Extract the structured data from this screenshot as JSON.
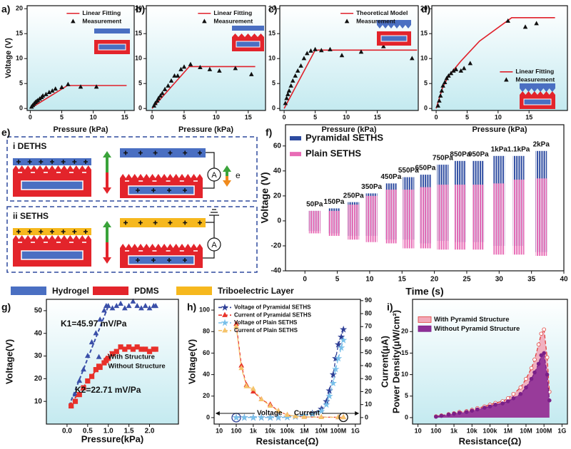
{
  "chart_data": [
    {
      "type": "line",
      "panel_label": "a)",
      "x_label": "Pressure (kPa)",
      "y_label": "Voltage (V)",
      "xlim": [
        -0.5,
        16.5
      ],
      "ylim": [
        -0.4,
        20.6
      ],
      "xticks": [
        0,
        5,
        10,
        15
      ],
      "yticks": [
        0,
        5,
        10,
        15,
        20
      ],
      "background": "gradient",
      "legend": "upper right",
      "series": [
        {
          "name": "Linear Fitting",
          "color": "#e0202a",
          "mode": "line",
          "x": [
            0,
            5.9,
            15.3
          ],
          "values": [
            0,
            4.6,
            4.6
          ]
        },
        {
          "name": "Measurement",
          "color": "#111111",
          "mode": "markers",
          "marker": "triangle",
          "x": [
            0.2,
            0.4,
            0.6,
            0.8,
            1,
            1.2,
            1.5,
            1.8,
            2,
            2.5,
            3,
            3.5,
            4,
            5,
            6,
            8,
            10.5
          ],
          "values": [
            0.3,
            0.6,
            0.9,
            1.2,
            1.4,
            1.6,
            1.9,
            2.2,
            2.5,
            2.8,
            3.2,
            3.5,
            3.9,
            4.2,
            4.8,
            4.3,
            4.3
          ]
        }
      ]
    },
    {
      "type": "line",
      "panel_label": "b)",
      "x_label": "Pressure (kPa)",
      "xlim": [
        -0.9,
        17.7
      ],
      "ylim": [
        -0.4,
        20.6
      ],
      "xticks": [
        0,
        5,
        10,
        15
      ],
      "yticks": [
        0,
        5,
        10,
        15,
        20
      ],
      "background": "gradient",
      "legend": "upper right",
      "series": [
        {
          "name": "Linear Fitting",
          "color": "#e0202a",
          "mode": "line",
          "x": [
            0,
            5.8,
            16.1
          ],
          "values": [
            0,
            8.4,
            8.4
          ]
        },
        {
          "name": "Measurement",
          "color": "#111111",
          "mode": "markers",
          "marker": "triangle",
          "x": [
            0.3,
            0.5,
            0.8,
            1,
            1.3,
            1.6,
            2,
            2.5,
            3,
            3.5,
            4,
            4.5,
            5,
            6,
            7.5,
            9,
            10.5,
            13,
            15.5
          ],
          "values": [
            0.5,
            1,
            1.5,
            2,
            2.5,
            3,
            3.8,
            4.5,
            5.5,
            6.5,
            6.5,
            7.8,
            8.3,
            8.8,
            8.2,
            7.8,
            7.5,
            8,
            6.8
          ]
        }
      ]
    },
    {
      "type": "line",
      "panel_label": "c)",
      "x_label": "Pressure (kPa)",
      "xlim": [
        -0.7,
        21.6
      ],
      "ylim": [
        -0.4,
        20.6
      ],
      "xticks": [
        0,
        5,
        10,
        15
      ],
      "yticks": [
        0,
        5,
        10,
        15,
        20
      ],
      "background": "gradient",
      "legend": "upper right",
      "series": [
        {
          "name": "Theoretical Model",
          "color": "#e0202a",
          "mode": "line",
          "x": [
            0,
            5,
            21.4
          ],
          "values": [
            0,
            11.7,
            11.7
          ]
        },
        {
          "name": "Measurement",
          "color": "#111111",
          "mode": "markers",
          "marker": "triangle",
          "x": [
            0.2,
            0.4,
            0.6,
            0.8,
            1.1,
            1.4,
            1.8,
            2.2,
            2.7,
            3.2,
            3.7,
            4.3,
            5,
            6,
            7.4,
            9.3,
            12.4,
            16,
            20.6
          ],
          "values": [
            1,
            2,
            2.8,
            3.5,
            4.5,
            5.5,
            6.5,
            7.5,
            8.5,
            10,
            11,
            11.5,
            11.8,
            11.6,
            11.8,
            10.6,
            11.3,
            12.4,
            10
          ]
        }
      ]
    },
    {
      "type": "line",
      "panel_label": "d)",
      "x_label": "Pressure (kPa)",
      "xlim": [
        -0.7,
        21.2
      ],
      "ylim": [
        -0.4,
        20.6
      ],
      "xticks": [
        0,
        5,
        10,
        15
      ],
      "yticks": [
        0,
        5,
        10,
        15,
        20
      ],
      "background": "gradient",
      "legend": "lower right",
      "series": [
        {
          "name": "Linear Fitting",
          "color": "#e0202a",
          "mode": "line",
          "x": [
            0,
            1,
            2,
            4,
            7,
            12.2,
            19.2
          ],
          "values": [
            0,
            4,
            6.5,
            9.5,
            13.5,
            18.2,
            18.2
          ]
        },
        {
          "name": "Measurement",
          "color": "#111111",
          "mode": "markers",
          "marker": "triangle",
          "x": [
            0.3,
            0.5,
            0.7,
            0.9,
            1.1,
            1.4,
            1.7,
            2,
            2.4,
            2.8,
            3.2,
            4,
            4.5,
            5.5,
            11.6,
            14.4,
            16.2
          ],
          "values": [
            0.5,
            1.5,
            2.5,
            3.5,
            4.5,
            5.2,
            6,
            6.5,
            7,
            7.5,
            7.8,
            7.5,
            8,
            9,
            17.5,
            16.3,
            17
          ]
        }
      ]
    },
    {
      "type": "range",
      "panel_label": "f)",
      "x_label": "Time (s)",
      "y_label": "Voltage (V)",
      "xlim": [
        -3,
        40
      ],
      "ylim": [
        -40,
        77
      ],
      "xticks": [
        0,
        5,
        10,
        15,
        20,
        25,
        30,
        35,
        40
      ],
      "yticks": [
        -40,
        -20,
        0,
        20,
        40,
        60
      ],
      "legend": "upper left",
      "categories": [
        "50Pa",
        "150Pa",
        "250Pa",
        "350Pa",
        "450Pa",
        "550Pa",
        "650Pa",
        "750Pa",
        "850Pa",
        "950Pa",
        "1kPa",
        "1.1kPa",
        "2kPa"
      ],
      "x": [
        1.5,
        4.5,
        7.5,
        10.3,
        13.3,
        16,
        18.6,
        21.3,
        24,
        26.8,
        30,
        33,
        36.5
      ],
      "series": [
        {
          "name": "Pyramidal SETHS",
          "color": "#2c4aa0",
          "values": [
            8,
            10,
            15,
            22,
            30,
            35,
            37,
            45,
            48,
            48,
            52,
            52,
            56
          ],
          "lows": [
            -8,
            -10,
            -12,
            -12,
            -15,
            -15,
            -18,
            -16,
            -17,
            -17,
            -20,
            -20,
            -25
          ]
        },
        {
          "name": "Plain SETHS",
          "color": "#e86bb5",
          "values": [
            8,
            8,
            13,
            20,
            25,
            25,
            27,
            29,
            29,
            29,
            30,
            33,
            34
          ],
          "lows": [
            -10,
            -12,
            -15,
            -17,
            -18,
            -22,
            -22,
            -23,
            -23,
            -23,
            -27,
            -27,
            -28
          ]
        }
      ]
    },
    {
      "type": "line",
      "panel_label": "g)",
      "x_label": "Pressure(kPa)",
      "y_label": "Voltage(V)",
      "xlim": [
        -0.5,
        2.7
      ],
      "ylim": [
        0,
        55
      ],
      "xticks": [
        {
          "value": 0,
          "label": "0.0"
        },
        0.5,
        {
          "value": 1,
          "label": "1.0"
        },
        1.5,
        {
          "value": 2,
          "label": "2.0"
        }
      ],
      "yticks": [
        10,
        20,
        30,
        40,
        50
      ],
      "background": "gradient",
      "legend": "center right",
      "annotations": [
        "K1=45.97 mV/Pa",
        "K2=22.71 mV/Pa"
      ],
      "series": [
        {
          "name": "With Structure",
          "color": "#3a4fa8",
          "mode": "markers",
          "marker": "triangle",
          "dash": "dashed",
          "x": [
            0.1,
            0.2,
            0.3,
            0.4,
            0.5,
            0.6,
            0.7,
            0.8,
            0.9,
            0.95,
            1.0,
            1.1,
            1.2,
            1.3,
            1.4,
            1.5,
            1.6,
            1.7,
            1.8,
            1.9,
            2.0,
            2.1,
            2.15
          ],
          "values": [
            8,
            13,
            19,
            24,
            30,
            36,
            40,
            46,
            50,
            52,
            52,
            51,
            52,
            53,
            51,
            52,
            54,
            52,
            51,
            52,
            51,
            52,
            52
          ],
          "fit": {
            "x": [
              0.05,
              1.0
            ],
            "values": [
              8,
              52
            ]
          }
        },
        {
          "name": "Without Structure",
          "color": "#e8302a",
          "mode": "markers",
          "marker": "square",
          "dash": "dashdot",
          "x": [
            0.1,
            0.2,
            0.3,
            0.4,
            0.5,
            0.6,
            0.7,
            0.8,
            0.9,
            0.95,
            1.0,
            1.1,
            1.2,
            1.3,
            1.4,
            1.5,
            1.6,
            1.7,
            1.8,
            1.9,
            2.0,
            2.1,
            2.15
          ],
          "values": [
            8,
            10,
            13,
            16,
            19,
            21,
            24,
            25,
            27,
            28,
            29,
            31,
            32,
            34,
            33,
            34,
            33,
            34,
            33,
            33,
            32,
            33,
            33
          ],
          "fit": {
            "x": [
              0.05,
              1.05
            ],
            "values": [
              8,
              32
            ]
          }
        }
      ]
    },
    {
      "type": "line",
      "panel_label": "h)",
      "x_label": "Resistance(Ω)",
      "y_label": "Voltage(V)",
      "y2_label": "Current(μA)",
      "xscale": "log",
      "xlim": [
        5,
        2000000000
      ],
      "ylim": [
        -6,
        110
      ],
      "y2lim": [
        -5,
        91
      ],
      "xticks": [
        10,
        100,
        {
          "value": 1000,
          "label": "1k"
        },
        {
          "value": 10000,
          "label": "10k"
        },
        {
          "value": 100000,
          "label": "100k"
        },
        {
          "value": 1000000,
          "label": "1M"
        },
        {
          "value": 10000000,
          "label": "10M"
        },
        {
          "value": 100000000,
          "label": "100M"
        },
        {
          "value": 1000000000,
          "label": "1G"
        }
      ],
      "yticks": [
        0,
        20,
        40,
        60,
        80,
        100
      ],
      "y2ticks": [
        0,
        10,
        20,
        30,
        40,
        50,
        60,
        70,
        80,
        90
      ],
      "legend": "upper left",
      "annotations": [
        "Voltage",
        "Current"
      ],
      "series": [
        {
          "name": "Voltage of Pyramidal SETHS",
          "color": "#2e3f96",
          "mode": "lines+markers",
          "marker": "star",
          "dash": "dashed",
          "x": [
            100,
            300,
            1000,
            3000,
            10000,
            30000,
            100000,
            300000,
            1000000,
            3000000,
            10000000,
            20000000,
            30000000,
            50000000,
            70000000,
            100000000,
            150000000,
            200000000
          ],
          "values": [
            0,
            0,
            0,
            0,
            0,
            0,
            0.5,
            1,
            2,
            4,
            8,
            15,
            25,
            40,
            55,
            68,
            75,
            82
          ]
        },
        {
          "name": "Current of Pyramidal SETHS",
          "color": "#e8332a",
          "mode": "lines+markers",
          "marker": "triangle",
          "dash": "dashed",
          "axis": "y2",
          "x": [
            100,
            200,
            400,
            1000,
            3000,
            10000,
            30000,
            100000,
            300000,
            1000000,
            10000000,
            100000000,
            200000000
          ],
          "values": [
            72,
            40,
            25,
            20,
            14,
            10,
            5,
            2,
            1,
            0.5,
            0.3,
            0.2,
            0.2
          ]
        },
        {
          "name": "Voltage of Plain SETHS",
          "color": "#79c0ea",
          "mode": "lines+markers",
          "marker": "star",
          "dash": "dashed",
          "x": [
            100,
            300,
            1000,
            3000,
            10000,
            30000,
            100000,
            300000,
            1000000,
            3000000,
            10000000,
            20000000,
            30000000,
            50000000,
            70000000,
            100000000,
            150000000,
            200000000
          ],
          "values": [
            0,
            0,
            0,
            0,
            0,
            0,
            0.3,
            1,
            2,
            3,
            6,
            12,
            20,
            32,
            45,
            55,
            65,
            72
          ]
        },
        {
          "name": "Current of Plain SETHS",
          "color": "#f5c36a",
          "mode": "lines+markers",
          "marker": "triangle",
          "dash": "dashed",
          "axis": "y2",
          "x": [
            100,
            200,
            400,
            1000,
            3000,
            10000,
            30000,
            100000,
            300000,
            1000000,
            10000000,
            100000000,
            200000000
          ],
          "values": [
            70,
            38,
            24,
            22,
            14,
            9,
            5,
            2,
            1,
            0.5,
            0.3,
            0.2,
            0.2
          ]
        }
      ]
    },
    {
      "type": "area",
      "panel_label": "i)",
      "x_label": "Resistance(Ω)",
      "y_label": "Power Density(μW/cm²)",
      "xscale": "log",
      "xlim": [
        5,
        2000000000
      ],
      "ylim": [
        -1.5,
        27.5
      ],
      "xticks": [
        10,
        100,
        {
          "value": 1000,
          "label": "1k"
        },
        {
          "value": 10000,
          "label": "10k"
        },
        {
          "value": 100000,
          "label": "100k"
        },
        {
          "value": 1000000,
          "label": "1M"
        },
        {
          "value": 10000000,
          "label": "10M"
        },
        {
          "value": 100000000,
          "label": "100M"
        },
        {
          "value": 1000000000,
          "label": "1G"
        }
      ],
      "yticks": [
        0,
        5,
        10,
        15,
        20
      ],
      "background": "gradient",
      "legend": "upper left",
      "series": [
        {
          "name": "With Pyramid Structure",
          "color": "#e0403c",
          "fill": "#f2a9b9",
          "mode": "lines+markers",
          "marker": "circle",
          "hollow": true,
          "dash": "dashed",
          "x": [
            100,
            200,
            500,
            1000,
            2000,
            5000,
            10000,
            20000,
            50000,
            100000,
            200000,
            500000,
            1000000,
            2000000,
            5000000,
            10000000,
            20000000,
            30000000,
            50000000,
            70000000,
            100000000,
            150000000,
            200000000
          ],
          "values": [
            0.3,
            0.5,
            0.8,
            1,
            1.3,
            1.5,
            1.8,
            2.2,
            2.6,
            3,
            3.4,
            3.8,
            4.5,
            5.5,
            7,
            9,
            11.5,
            13.5,
            17,
            19.5,
            20.5,
            14,
            6
          ]
        },
        {
          "name": "Without Pyramid Structure",
          "color": "#7a2088",
          "fill": "#8e2f96",
          "mode": "lines+markers",
          "marker": "circle",
          "dash": "dashed",
          "x": [
            100,
            200,
            500,
            1000,
            2000,
            5000,
            10000,
            20000,
            50000,
            100000,
            200000,
            500000,
            1000000,
            2000000,
            5000000,
            10000000,
            20000000,
            30000000,
            50000000,
            70000000,
            100000000,
            150000000,
            200000000
          ],
          "values": [
            0.2,
            0.4,
            0.7,
            0.9,
            1.1,
            1.3,
            1.6,
            1.9,
            2.3,
            2.6,
            3,
            3.3,
            3.8,
            4.5,
            5.5,
            7,
            9,
            10.5,
            12.5,
            14.5,
            15,
            10,
            4
          ]
        }
      ]
    }
  ],
  "diagram": {
    "panel_label": "e)",
    "sections": [
      {
        "label": "i DETHS",
        "meter": "A",
        "carrier": "e"
      },
      {
        "label": "ii SETHS",
        "meter": "A"
      }
    ],
    "legend": [
      {
        "label": "Hydrogel",
        "color": "#4a6fc2"
      },
      {
        "label": "PDMS",
        "color": "#e3242b"
      },
      {
        "label": "Triboelectric Layer",
        "color": "#f6b81e"
      }
    ]
  }
}
